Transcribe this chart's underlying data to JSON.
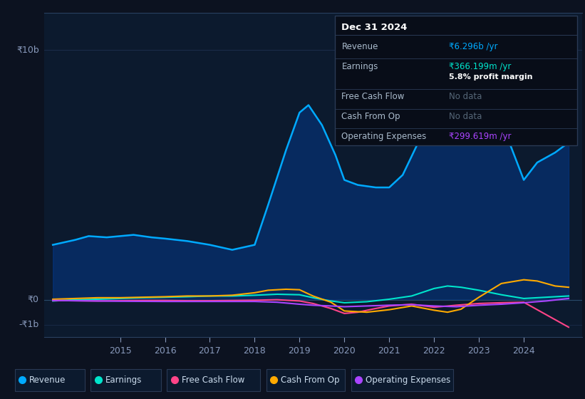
{
  "bg_color": "#0c1220",
  "chart_bg": "#0c1a2e",
  "border_color": "#1e3050",
  "info_box_bg": "#080d18",
  "info_box_border": "#2a3a55",
  "ylim_min": -1500000000.0,
  "ylim_max": 11500000000.0,
  "xlim_min": 2013.3,
  "xlim_max": 2025.3,
  "xticks": [
    2015,
    2016,
    2017,
    2018,
    2019,
    2020,
    2021,
    2022,
    2023,
    2024
  ],
  "ytick_positions": [
    0,
    10000000000.0
  ],
  "ytick_labels": [
    "₹0",
    "₹10b"
  ],
  "ytick_neg_pos": -1000000000.0,
  "ytick_neg_label": "-₹1b",
  "zero_line_y": 0,
  "revenue_x": [
    2013.5,
    2014.0,
    2014.3,
    2014.7,
    2015.0,
    2015.3,
    2015.7,
    2016.0,
    2016.5,
    2017.0,
    2017.5,
    2018.0,
    2018.3,
    2018.7,
    2019.0,
    2019.2,
    2019.5,
    2019.8,
    2020.0,
    2020.3,
    2020.7,
    2021.0,
    2021.3,
    2021.7,
    2022.0,
    2022.3,
    2022.6,
    2022.9,
    2023.0,
    2023.3,
    2023.7,
    2024.0,
    2024.3,
    2024.7,
    2025.0
  ],
  "revenue_y": [
    2200000000.0,
    2400000000.0,
    2550000000.0,
    2500000000.0,
    2550000000.0,
    2600000000.0,
    2500000000.0,
    2450000000.0,
    2350000000.0,
    2200000000.0,
    2000000000.0,
    2200000000.0,
    3800000000.0,
    6000000000.0,
    7500000000.0,
    7800000000.0,
    7000000000.0,
    5800000000.0,
    4800000000.0,
    4600000000.0,
    4500000000.0,
    4500000000.0,
    5000000000.0,
    6500000000.0,
    7800000000.0,
    9200000000.0,
    10000000000.0,
    10100000000.0,
    9800000000.0,
    8200000000.0,
    6200000000.0,
    4800000000.0,
    5500000000.0,
    5900000000.0,
    6300000000.0
  ],
  "earnings_x": [
    2013.5,
    2014.0,
    2014.5,
    2015.0,
    2015.5,
    2016.0,
    2016.5,
    2017.0,
    2017.5,
    2018.0,
    2018.5,
    2019.0,
    2019.3,
    2019.7,
    2020.0,
    2020.5,
    2021.0,
    2021.5,
    2022.0,
    2022.3,
    2022.6,
    2023.0,
    2023.5,
    2024.0,
    2024.5,
    2025.0
  ],
  "earnings_y": [
    -50000000.0,
    0.0,
    20000000.0,
    50000000.0,
    80000000.0,
    100000000.0,
    120000000.0,
    150000000.0,
    150000000.0,
    180000000.0,
    220000000.0,
    200000000.0,
    80000000.0,
    -50000000.0,
    -120000000.0,
    -80000000.0,
    20000000.0,
    150000000.0,
    450000000.0,
    550000000.0,
    500000000.0,
    380000000.0,
    200000000.0,
    50000000.0,
    100000000.0,
    150000000.0
  ],
  "fcf_x": [
    2013.5,
    2014.0,
    2014.5,
    2015.0,
    2015.5,
    2016.0,
    2016.5,
    2017.0,
    2017.5,
    2018.0,
    2018.5,
    2019.0,
    2019.3,
    2019.7,
    2020.0,
    2020.3,
    2020.7,
    2021.0,
    2021.5,
    2022.0,
    2022.5,
    2023.0,
    2023.5,
    2024.0,
    2024.5,
    2025.0
  ],
  "fcf_y": [
    -30000000.0,
    -40000000.0,
    -50000000.0,
    -40000000.0,
    -30000000.0,
    -30000000.0,
    -40000000.0,
    -40000000.0,
    -30000000.0,
    -20000000.0,
    0.0,
    -50000000.0,
    -150000000.0,
    -350000000.0,
    -550000000.0,
    -500000000.0,
    -350000000.0,
    -250000000.0,
    -180000000.0,
    -300000000.0,
    -220000000.0,
    -150000000.0,
    -120000000.0,
    -100000000.0,
    -600000000.0,
    -1100000000.0
  ],
  "cashfromop_x": [
    2013.5,
    2014.0,
    2014.5,
    2015.0,
    2015.5,
    2016.0,
    2016.5,
    2017.0,
    2017.5,
    2018.0,
    2018.3,
    2018.7,
    2019.0,
    2019.3,
    2019.7,
    2020.0,
    2020.5,
    2021.0,
    2021.5,
    2022.0,
    2022.3,
    2022.6,
    2023.0,
    2023.5,
    2024.0,
    2024.3,
    2024.7,
    2025.0
  ],
  "cashfromop_y": [
    20000000.0,
    50000000.0,
    80000000.0,
    80000000.0,
    100000000.0,
    120000000.0,
    150000000.0,
    150000000.0,
    180000000.0,
    280000000.0,
    380000000.0,
    420000000.0,
    400000000.0,
    150000000.0,
    -100000000.0,
    -450000000.0,
    -500000000.0,
    -400000000.0,
    -250000000.0,
    -420000000.0,
    -500000000.0,
    -380000000.0,
    100000000.0,
    650000000.0,
    800000000.0,
    750000000.0,
    550000000.0,
    500000000.0
  ],
  "opex_x": [
    2013.5,
    2014.5,
    2015.0,
    2016.0,
    2017.0,
    2018.0,
    2018.5,
    2019.0,
    2019.3,
    2019.7,
    2020.0,
    2020.5,
    2021.0,
    2021.5,
    2022.0,
    2022.5,
    2023.0,
    2023.5,
    2024.0,
    2024.5,
    2025.0
  ],
  "opex_y": [
    -30000000.0,
    -50000000.0,
    -60000000.0,
    -70000000.0,
    -70000000.0,
    -70000000.0,
    -100000000.0,
    -180000000.0,
    -220000000.0,
    -250000000.0,
    -280000000.0,
    -250000000.0,
    -220000000.0,
    -200000000.0,
    -250000000.0,
    -280000000.0,
    -220000000.0,
    -180000000.0,
    -120000000.0,
    -50000000.0,
    50000000.0
  ],
  "legend": [
    {
      "label": "Revenue",
      "color": "#00aaff"
    },
    {
      "label": "Earnings",
      "color": "#00e5cc"
    },
    {
      "label": "Free Cash Flow",
      "color": "#ff4488"
    },
    {
      "label": "Cash From Op",
      "color": "#ffaa00"
    },
    {
      "label": "Operating Expenses",
      "color": "#aa44ff"
    }
  ],
  "info_box": {
    "title": "Dec 31 2024",
    "rows": [
      {
        "label": "Revenue",
        "value": "₹6.296b /yr",
        "value_color": "#00aaff",
        "note": null,
        "note_color": null
      },
      {
        "label": "Earnings",
        "value": "₹366.199m /yr",
        "value_color": "#00e5cc",
        "note": "5.8% profit margin",
        "note_color": "#ffffff"
      },
      {
        "label": "Free Cash Flow",
        "value": "No data",
        "value_color": "#556677",
        "note": null,
        "note_color": null
      },
      {
        "label": "Cash From Op",
        "value": "No data",
        "value_color": "#556677",
        "note": null,
        "note_color": null
      },
      {
        "label": "Operating Expenses",
        "value": "₹299.619m /yr",
        "value_color": "#aa44ff",
        "note": null,
        "note_color": null
      }
    ]
  }
}
